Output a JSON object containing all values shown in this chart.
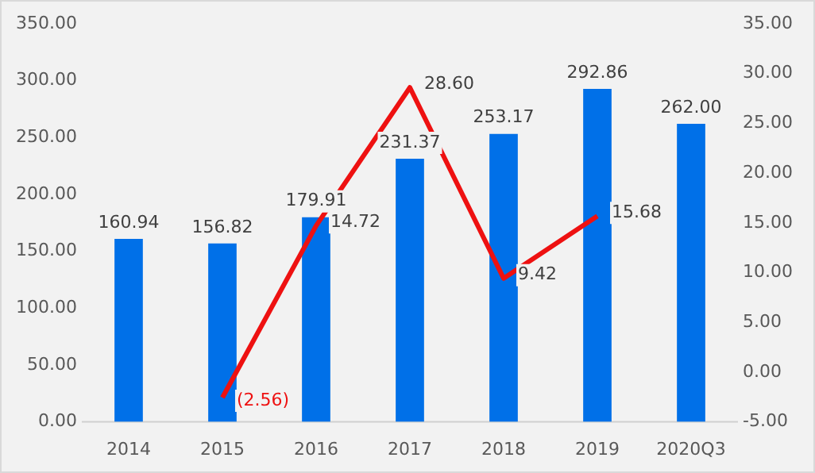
{
  "chart_data": {
    "type": "bar",
    "categories": [
      "2014",
      "2015",
      "2016",
      "2017",
      "2018",
      "2019",
      "2020Q3"
    ],
    "series": [
      {
        "color": "#0070e8",
        "values": [
          160.94,
          156.82,
          179.91,
          231.37,
          253.17,
          292.86,
          262.0
        ],
        "value_labels": [
          "160.94",
          "156.82",
          "179.91",
          "231.37",
          "253.17",
          "292.86",
          "262.00"
        ]
      },
      {
        "type": "line",
        "axis": "y2",
        "color": "#ee1111",
        "values": [
          null,
          -2.56,
          14.72,
          28.6,
          9.42,
          15.68,
          null
        ],
        "value_labels": [
          null,
          "(2.56)",
          "14.72",
          "28.60",
          "9.42",
          "15.68",
          null
        ]
      }
    ],
    "ylim": [
      0,
      350
    ],
    "yticks": [
      {
        "value": 0,
        "label": "0.00"
      },
      {
        "value": 50,
        "label": "50.00"
      },
      {
        "value": 100,
        "label": "100.00"
      },
      {
        "value": 150,
        "label": "150.00"
      },
      {
        "value": 200,
        "label": "200.00"
      },
      {
        "value": 250,
        "label": "250.00"
      },
      {
        "value": 300,
        "label": "300.00"
      },
      {
        "value": 350,
        "label": "350.00"
      }
    ],
    "y2lim": [
      -5,
      35
    ],
    "y2ticks": [
      {
        "value": -5,
        "label": "-5.00"
      },
      {
        "value": 0,
        "label": "0.00"
      },
      {
        "value": 5,
        "label": "5.00"
      },
      {
        "value": 10,
        "label": "10.00"
      },
      {
        "value": 15,
        "label": "15.00"
      },
      {
        "value": 20,
        "label": "20.00"
      },
      {
        "value": 25,
        "label": "25.00"
      },
      {
        "value": 30,
        "label": "30.00"
      },
      {
        "value": 35,
        "label": "35.00"
      }
    ],
    "grid": false,
    "legend": false,
    "marker": "none"
  }
}
